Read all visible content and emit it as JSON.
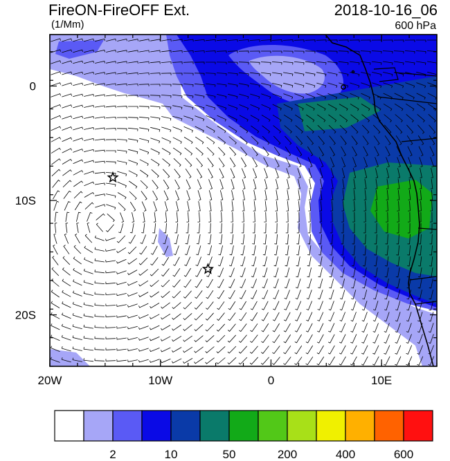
{
  "title": "FireON-FireOFF Ext.",
  "units": "(1/Mm)",
  "datetime": "2018-10-16_06",
  "level": "600 hPa",
  "map": {
    "lon_range": [
      -20,
      15
    ],
    "lat_range": [
      -24.5,
      4.5
    ],
    "lon_ticks": [
      {
        "value": -20,
        "label": "20W"
      },
      {
        "value": -10,
        "label": "10W"
      },
      {
        "value": 0,
        "label": "0"
      },
      {
        "value": 10,
        "label": "10E"
      }
    ],
    "lat_ticks": [
      {
        "value": 0,
        "label": "0"
      },
      {
        "value": -10,
        "label": "10S"
      },
      {
        "value": -20,
        "label": "20S"
      }
    ],
    "markers": [
      {
        "name": "star",
        "lon": -14.3,
        "lat": -8.0
      },
      {
        "name": "star",
        "lon": -5.7,
        "lat": -16.0
      }
    ],
    "wind_vectors": "barbs"
  },
  "colorbar": {
    "colors": [
      "#ffffff",
      "#a6a6f7",
      "#5a5af5",
      "#0a0ae6",
      "#0a3aa8",
      "#0a7a6a",
      "#12aa18",
      "#52c818",
      "#a8e018",
      "#f0f000",
      "#ffb000",
      "#ff6200",
      "#ff1010"
    ],
    "labels": [
      {
        "after_box": 1,
        "text": "2"
      },
      {
        "after_box": 3,
        "text": "10"
      },
      {
        "after_box": 5,
        "text": "50"
      },
      {
        "after_box": 7,
        "text": "200"
      },
      {
        "after_box": 9,
        "text": "400"
      },
      {
        "after_box": 11,
        "text": "600"
      }
    ]
  }
}
